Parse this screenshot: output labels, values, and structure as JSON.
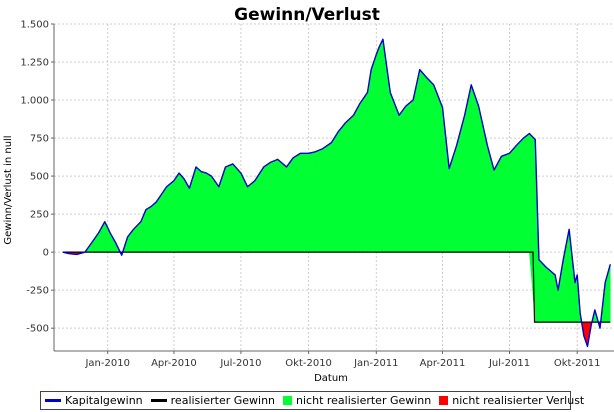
{
  "chart_data": {
    "type": "area",
    "title": "Gewinn/Verlust",
    "xlabel": "Datum",
    "ylabel": "Gewinn/Verlust in null",
    "ylim": [
      -650,
      1500
    ],
    "yticks": [
      1500,
      1250,
      1000,
      750,
      500,
      250,
      0,
      -250,
      -500
    ],
    "ytick_labels": [
      "1.500",
      "1.250",
      "1.000",
      "750",
      "500",
      "250",
      "0",
      "-250",
      "-500"
    ],
    "xticks": [
      {
        "label": "Jan-2010",
        "date": "2010-01-01"
      },
      {
        "label": "Apr-2010",
        "date": "2010-04-01"
      },
      {
        "label": "Jul-2010",
        "date": "2010-07-01"
      },
      {
        "label": "Okt-2010",
        "date": "2010-10-01"
      },
      {
        "label": "Jan-2011",
        "date": "2011-01-01"
      },
      {
        "label": "Apr-2011",
        "date": "2011-04-01"
      },
      {
        "label": "Jul-2011",
        "date": "2011-07-01"
      },
      {
        "label": "Okt-2011",
        "date": "2011-10-01"
      }
    ],
    "xlim": [
      "2009-10-20",
      "2011-11-20"
    ],
    "grid": true,
    "legend_position": "bottom",
    "colors": {
      "kapitalgewinn": "#0000cc",
      "realisiert": "#000000",
      "gewinn": "#00ff33",
      "verlust": "#ff0000"
    },
    "series": [
      {
        "name": "Kapitalgewinn",
        "x": [
          "2009-11-01",
          "2009-11-10",
          "2009-11-20",
          "2009-12-01",
          "2009-12-10",
          "2009-12-20",
          "2009-12-28",
          "2010-01-05",
          "2010-01-12",
          "2010-01-20",
          "2010-01-28",
          "2010-02-05",
          "2010-02-15",
          "2010-02-22",
          "2010-03-01",
          "2010-03-08",
          "2010-03-15",
          "2010-03-22",
          "2010-04-01",
          "2010-04-08",
          "2010-04-15",
          "2010-04-22",
          "2010-05-01",
          "2010-05-08",
          "2010-05-15",
          "2010-05-22",
          "2010-06-01",
          "2010-06-10",
          "2010-06-20",
          "2010-07-01",
          "2010-07-10",
          "2010-07-20",
          "2010-08-01",
          "2010-08-10",
          "2010-08-20",
          "2010-09-01",
          "2010-09-10",
          "2010-09-20",
          "2010-10-01",
          "2010-10-10",
          "2010-10-20",
          "2010-11-01",
          "2010-11-10",
          "2010-11-20",
          "2010-12-01",
          "2010-12-10",
          "2010-12-20",
          "2010-12-25",
          "2011-01-01",
          "2011-01-05",
          "2011-01-10",
          "2011-01-20",
          "2011-02-01",
          "2011-02-10",
          "2011-02-20",
          "2011-03-01",
          "2011-03-10",
          "2011-03-20",
          "2011-04-01",
          "2011-04-10",
          "2011-04-20",
          "2011-05-01",
          "2011-05-10",
          "2011-05-20",
          "2011-06-01",
          "2011-06-10",
          "2011-06-20",
          "2011-07-01",
          "2011-07-10",
          "2011-07-20",
          "2011-07-28",
          "2011-08-05",
          "2011-08-10",
          "2011-08-20",
          "2011-09-01",
          "2011-09-05",
          "2011-09-12",
          "2011-09-20",
          "2011-09-28",
          "2011-10-01",
          "2011-10-05",
          "2011-10-10",
          "2011-10-15",
          "2011-10-20",
          "2011-10-25",
          "2011-11-01",
          "2011-11-08",
          "2011-11-15"
        ],
        "values": [
          0,
          -10,
          -15,
          0,
          60,
          130,
          200,
          120,
          60,
          -20,
          100,
          150,
          200,
          280,
          300,
          330,
          380,
          430,
          470,
          520,
          480,
          420,
          560,
          530,
          520,
          500,
          430,
          560,
          580,
          520,
          430,
          470,
          560,
          590,
          610,
          560,
          620,
          650,
          650,
          660,
          680,
          720,
          790,
          850,
          900,
          980,
          1050,
          1200,
          1300,
          1350,
          1400,
          1050,
          900,
          960,
          1000,
          1200,
          1150,
          1100,
          950,
          550,
          700,
          900,
          1100,
          960,
          700,
          540,
          630,
          650,
          700,
          750,
          780,
          740,
          -50,
          -100,
          -150,
          -250,
          -50,
          150,
          -200,
          -150,
          -400,
          -550,
          -620,
          -480,
          -380,
          -500,
          -200,
          -80
        ]
      },
      {
        "name": "realisierter Gewinn",
        "x": [
          "2009-11-01",
          "2011-08-02",
          "2011-08-04",
          "2011-11-15"
        ],
        "values": [
          0,
          0,
          -460,
          -460
        ]
      }
    ],
    "areas": [
      {
        "name": "nicht realisierter Gewinn"
      },
      {
        "name": "nicht realisierter Verlust"
      }
    ]
  }
}
